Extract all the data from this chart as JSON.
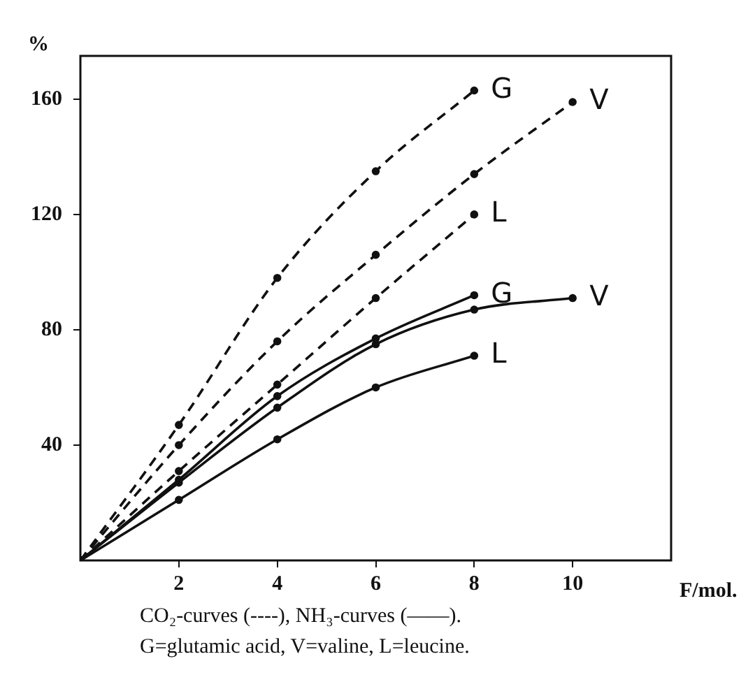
{
  "chart_data": {
    "type": "line",
    "xlabel": "F/mol.",
    "ylabel": "%",
    "x": [
      0,
      2,
      4,
      6,
      8,
      10
    ],
    "xlim": [
      0,
      12
    ],
    "xticks": [
      2,
      4,
      6,
      8,
      10
    ],
    "ylim": [
      0,
      175
    ],
    "yticks": [
      40,
      80,
      120,
      160
    ],
    "grid": false,
    "legend": false,
    "marker": "circle",
    "series": [
      {
        "name": "G",
        "color": "#111111",
        "line_style": "dashed",
        "values": [
          0,
          47,
          98,
          135,
          163,
          null
        ]
      },
      {
        "name": "V",
        "color": "#111111",
        "line_style": "dashed",
        "values": [
          0,
          40,
          76,
          106,
          134,
          159
        ]
      },
      {
        "name": "L",
        "color": "#111111",
        "line_style": "dashed",
        "values": [
          0,
          31,
          61,
          91,
          120,
          null
        ]
      },
      {
        "name": "G",
        "color": "#111111",
        "line_style": "solid",
        "values": [
          0,
          28,
          57,
          77,
          92,
          null
        ]
      },
      {
        "name": "V",
        "color": "#111111",
        "line_style": "solid",
        "values": [
          0,
          27,
          53,
          75,
          87,
          91
        ]
      },
      {
        "name": "L",
        "color": "#111111",
        "line_style": "solid",
        "values": [
          0,
          21,
          42,
          60,
          71,
          null
        ]
      }
    ],
    "annotations": [
      "CO₂-curves (----),  NH₃-curves (——).",
      "G=glutamic acid,  V=valine,  L=leucine."
    ]
  }
}
